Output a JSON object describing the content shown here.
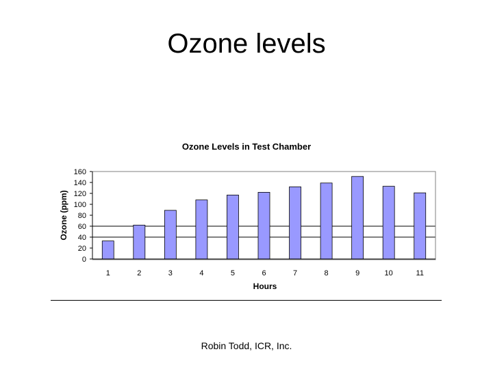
{
  "slide": {
    "title": "Ozone levels",
    "footer": "Robin Todd, ICR, Inc."
  },
  "chart_data": {
    "type": "bar",
    "title": "Ozone Levels in Test Chamber",
    "xlabel": "Hours",
    "ylabel": "Ozone (ppm)",
    "categories": [
      "1",
      "2",
      "3",
      "4",
      "5",
      "6",
      "7",
      "8",
      "9",
      "10",
      "11"
    ],
    "values": [
      33,
      62,
      89,
      108,
      117,
      122,
      132,
      139,
      151,
      133,
      121
    ],
    "ylim": [
      0,
      160
    ],
    "yticks": [
      0,
      20,
      40,
      60,
      80,
      100,
      120,
      140,
      160
    ],
    "highlight_gridlines": [
      40,
      60
    ],
    "grid": false,
    "legend": "none",
    "colors": {
      "bar_fill": "#9999ff",
      "bar_stroke": "#000000",
      "axis": "#000000",
      "plot_border": "#808080"
    }
  }
}
